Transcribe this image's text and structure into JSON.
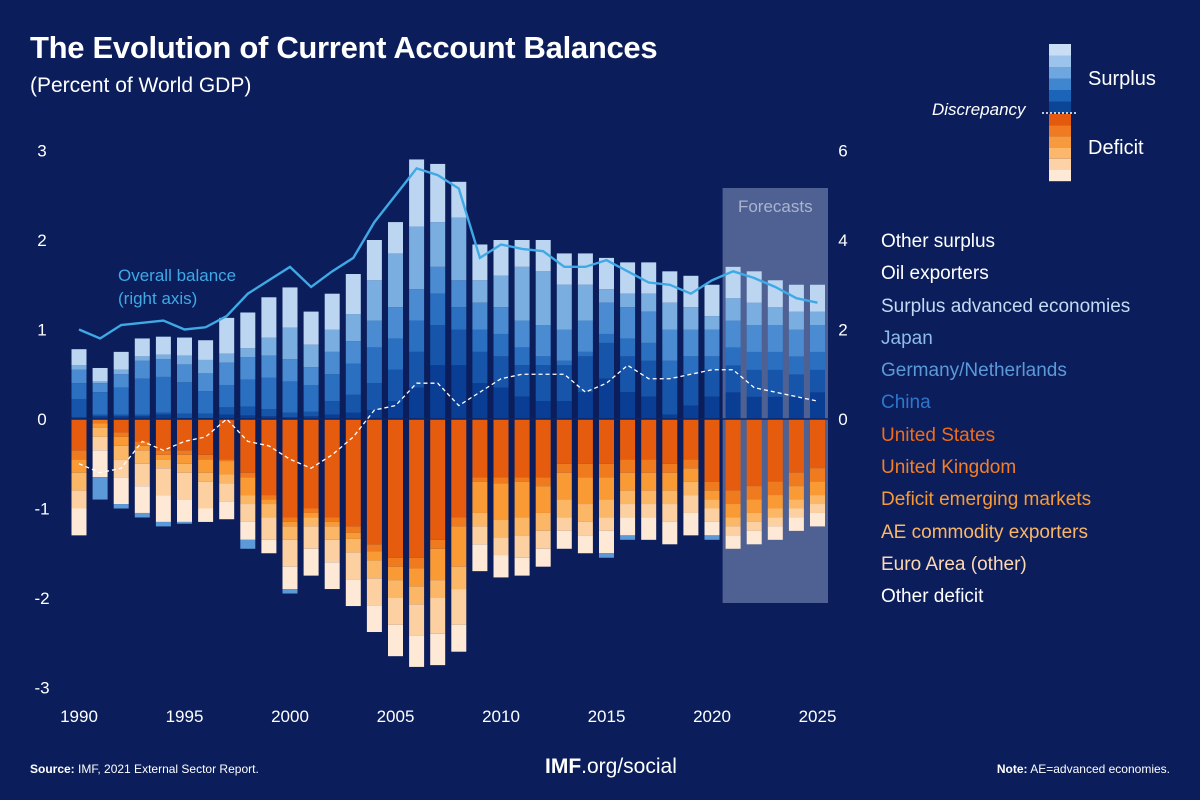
{
  "title": "The Evolution of Current Account Balances",
  "subtitle": "(Percent of World GDP)",
  "footer": {
    "source_label": "Source:",
    "source_text": "IMF, 2021 External Sector Report.",
    "brand_bold": "IMF",
    "brand_rest": ".org/social",
    "note_label": "Note:",
    "note_text": "AE=advanced economies."
  },
  "key": {
    "surplus": "Surplus",
    "deficit": "Deficit",
    "discrepancy": "Discrepancy"
  },
  "colors": {
    "background": "#0b1e5b",
    "overall_line": "#3fa9e6",
    "forecast_band": "#5a6d9c"
  },
  "chart_data": {
    "type": "bar",
    "stacked": true,
    "x": [
      1990,
      1991,
      1992,
      1993,
      1994,
      1995,
      1996,
      1997,
      1998,
      1999,
      2000,
      2001,
      2002,
      2003,
      2004,
      2005,
      2006,
      2007,
      2008,
      2009,
      2010,
      2011,
      2012,
      2013,
      2014,
      2015,
      2016,
      2017,
      2018,
      2019,
      2020,
      2021,
      2022,
      2023,
      2024,
      2025
    ],
    "x_ticks": [
      1990,
      1995,
      2000,
      2005,
      2010,
      2015,
      2020,
      2025
    ],
    "ylim": [
      -3,
      3
    ],
    "y_ticks": [
      3,
      2,
      1,
      0,
      -1,
      -2,
      -3
    ],
    "y2lim": [
      -6,
      6
    ],
    "y2_ticks": [
      6,
      4,
      2,
      0
    ],
    "forecast_label": "Forecasts",
    "forecast_range": [
      2021,
      2025
    ],
    "series": [
      {
        "name": "China",
        "group": "surplus",
        "color": "#0a3e94",
        "values": [
          0.02,
          0.03,
          0.03,
          0.03,
          0.05,
          0.01,
          0.01,
          0.05,
          0.04,
          0.03,
          0.02,
          0.03,
          0.05,
          0.07,
          0.1,
          0.2,
          0.35,
          0.6,
          0.6,
          0.4,
          0.35,
          0.25,
          0.2,
          0.2,
          0.3,
          0.45,
          0.3,
          0.25,
          0.05,
          0.15,
          0.25,
          0.3,
          0.25,
          0.25,
          0.25,
          0.3
        ]
      },
      {
        "name": "Germany/Netherlands",
        "group": "surplus",
        "color": "#1655aa",
        "values": [
          0.2,
          0.02,
          0.02,
          0.02,
          0.02,
          0.05,
          0.05,
          0.08,
          0.1,
          0.08,
          0.05,
          0.05,
          0.15,
          0.2,
          0.3,
          0.35,
          0.4,
          0.45,
          0.4,
          0.35,
          0.35,
          0.35,
          0.4,
          0.4,
          0.4,
          0.4,
          0.4,
          0.4,
          0.4,
          0.35,
          0.3,
          0.3,
          0.3,
          0.3,
          0.25,
          0.25
        ]
      },
      {
        "name": "Japan",
        "group": "surplus",
        "color": "#2a6fc0",
        "values": [
          0.18,
          0.25,
          0.3,
          0.4,
          0.4,
          0.35,
          0.25,
          0.25,
          0.3,
          0.35,
          0.35,
          0.3,
          0.3,
          0.35,
          0.4,
          0.35,
          0.35,
          0.35,
          0.25,
          0.25,
          0.25,
          0.2,
          0.1,
          0.05,
          0.05,
          0.1,
          0.2,
          0.2,
          0.2,
          0.2,
          0.15,
          0.2,
          0.2,
          0.2,
          0.2,
          0.2
        ]
      },
      {
        "name": "Surplus advanced economies",
        "group": "surplus",
        "color": "#4a8bd2",
        "values": [
          0.15,
          0.1,
          0.15,
          0.2,
          0.2,
          0.2,
          0.2,
          0.25,
          0.25,
          0.25,
          0.25,
          0.2,
          0.25,
          0.25,
          0.3,
          0.35,
          0.35,
          0.3,
          0.3,
          0.3,
          0.3,
          0.3,
          0.35,
          0.35,
          0.35,
          0.35,
          0.35,
          0.35,
          0.35,
          0.3,
          0.3,
          0.3,
          0.3,
          0.3,
          0.3,
          0.3
        ]
      },
      {
        "name": "Oil exporters",
        "group": "surplus",
        "color": "#7aaee1",
        "values": [
          0.05,
          0.02,
          0.05,
          0.05,
          0.05,
          0.1,
          0.15,
          0.1,
          0.1,
          0.2,
          0.35,
          0.25,
          0.25,
          0.3,
          0.45,
          0.6,
          0.7,
          0.5,
          0.7,
          0.25,
          0.35,
          0.6,
          0.6,
          0.5,
          0.4,
          0.15,
          0.15,
          0.2,
          0.3,
          0.25,
          0.15,
          0.25,
          0.25,
          0.2,
          0.2,
          0.15
        ]
      },
      {
        "name": "Other surplus",
        "group": "surplus",
        "color": "#bcd6f2",
        "values": [
          0.18,
          0.15,
          0.2,
          0.2,
          0.2,
          0.2,
          0.22,
          0.4,
          0.4,
          0.45,
          0.45,
          0.37,
          0.4,
          0.45,
          0.45,
          0.35,
          0.75,
          0.65,
          0.4,
          0.4,
          0.4,
          0.3,
          0.35,
          0.35,
          0.35,
          0.35,
          0.35,
          0.35,
          0.35,
          0.35,
          0.35,
          0.35,
          0.35,
          0.3,
          0.3,
          0.3
        ]
      },
      {
        "name": "United States",
        "group": "deficit",
        "color": "#e65c0e",
        "values": [
          0.35,
          0.0,
          0.15,
          0.25,
          0.35,
          0.35,
          0.4,
          0.45,
          0.6,
          0.85,
          1.1,
          1.0,
          1.1,
          1.2,
          1.4,
          1.55,
          1.55,
          1.35,
          1.1,
          0.65,
          0.65,
          0.65,
          0.65,
          0.5,
          0.5,
          0.5,
          0.45,
          0.45,
          0.5,
          0.45,
          0.7,
          0.8,
          0.75,
          0.7,
          0.6,
          0.55
        ]
      },
      {
        "name": "United Kingdom",
        "group": "deficit",
        "color": "#f07a1e",
        "values": [
          0.1,
          0.05,
          0.05,
          0.05,
          0.05,
          0.05,
          0.05,
          0.02,
          0.05,
          0.05,
          0.05,
          0.05,
          0.05,
          0.07,
          0.08,
          0.1,
          0.12,
          0.1,
          0.1,
          0.05,
          0.07,
          0.05,
          0.1,
          0.1,
          0.15,
          0.15,
          0.15,
          0.15,
          0.1,
          0.1,
          0.1,
          0.15,
          0.15,
          0.15,
          0.15,
          0.15
        ]
      },
      {
        "name": "Deficit emerging markets",
        "group": "deficit",
        "color": "#f99a35",
        "values": [
          0.15,
          0.05,
          0.1,
          0.05,
          0.05,
          0.1,
          0.15,
          0.15,
          0.2,
          0.05,
          0.05,
          0.05,
          0.05,
          0.07,
          0.1,
          0.15,
          0.2,
          0.35,
          0.45,
          0.35,
          0.4,
          0.4,
          0.3,
          0.3,
          0.3,
          0.25,
          0.2,
          0.2,
          0.2,
          0.15,
          0.1,
          0.15,
          0.15,
          0.15,
          0.15,
          0.15
        ]
      },
      {
        "name": "AE commodity exporters",
        "group": "deficit",
        "color": "#fbb666",
        "values": [
          0.2,
          0.1,
          0.15,
          0.15,
          0.1,
          0.1,
          0.1,
          0.1,
          0.1,
          0.15,
          0.15,
          0.1,
          0.15,
          0.15,
          0.2,
          0.2,
          0.2,
          0.2,
          0.25,
          0.15,
          0.2,
          0.2,
          0.2,
          0.2,
          0.2,
          0.2,
          0.15,
          0.15,
          0.15,
          0.15,
          0.1,
          0.1,
          0.1,
          0.1,
          0.1,
          0.1
        ]
      },
      {
        "name": "Euro Area (other)",
        "group": "deficit",
        "color": "#fdd0a2",
        "values": [
          0.2,
          0.15,
          0.2,
          0.25,
          0.3,
          0.3,
          0.3,
          0.2,
          0.2,
          0.25,
          0.3,
          0.25,
          0.25,
          0.3,
          0.3,
          0.3,
          0.35,
          0.4,
          0.4,
          0.2,
          0.2,
          0.25,
          0.2,
          0.15,
          0.15,
          0.15,
          0.15,
          0.15,
          0.2,
          0.2,
          0.15,
          0.1,
          0.1,
          0.1,
          0.1,
          0.1
        ]
      },
      {
        "name": "Other deficit",
        "group": "deficit",
        "color": "#fee8d6",
        "values": [
          0.3,
          0.3,
          0.3,
          0.3,
          0.3,
          0.25,
          0.15,
          0.2,
          0.2,
          0.15,
          0.25,
          0.3,
          0.3,
          0.3,
          0.3,
          0.35,
          0.35,
          0.35,
          0.3,
          0.3,
          0.25,
          0.2,
          0.2,
          0.2,
          0.2,
          0.25,
          0.2,
          0.25,
          0.25,
          0.25,
          0.15,
          0.15,
          0.15,
          0.15,
          0.15,
          0.15
        ]
      }
    ],
    "discrepancy_overflow": {
      "note": "Blue segments shown at the bottom of deficit bars in early years",
      "values": [
        0.0,
        0.25,
        0.05,
        0.05,
        0.05,
        0.02,
        0.0,
        0.0,
        0.1,
        0.0,
        0.05,
        0.0,
        0.0,
        0.0,
        0.0,
        0.0,
        0.0,
        0.0,
        0.0,
        0.0,
        0.0,
        0.0,
        0.0,
        0.0,
        0.0,
        0.05,
        0.05,
        0.0,
        0.0,
        0.0,
        0.05,
        0.0,
        0.0,
        0.0,
        0.0,
        0.0
      ]
    },
    "overall_balance": {
      "label_line1": "Overall balance",
      "label_line2": "(right axis)",
      "axis": "right",
      "values": [
        2.0,
        1.8,
        2.1,
        2.15,
        2.2,
        2.0,
        2.05,
        2.3,
        2.8,
        3.1,
        3.4,
        2.95,
        3.3,
        3.6,
        4.4,
        5.0,
        5.6,
        5.45,
        5.15,
        3.6,
        3.9,
        3.8,
        3.75,
        3.4,
        3.4,
        3.55,
        3.3,
        3.05,
        3.0,
        2.8,
        3.1,
        3.3,
        3.15,
        2.95,
        2.7,
        2.6
      ]
    },
    "discrepancy_line": {
      "values": [
        -0.5,
        -0.6,
        -0.55,
        -0.25,
        -0.35,
        -0.25,
        -0.2,
        0.0,
        -0.25,
        -0.3,
        -0.45,
        -0.55,
        -0.4,
        -0.2,
        0.1,
        0.15,
        0.4,
        0.4,
        0.15,
        0.3,
        0.45,
        0.5,
        0.5,
        0.5,
        0.3,
        0.4,
        0.6,
        0.45,
        0.45,
        0.5,
        0.55,
        0.55,
        0.35,
        0.3,
        0.25,
        0.2
      ]
    },
    "legend_order": [
      "Other surplus",
      "Oil exporters",
      "Surplus advanced economies",
      "Japan",
      "Germany/Netherlands",
      "China",
      "United States",
      "United Kingdom",
      "Deficit emerging markets",
      "AE commodity exporters",
      "Euro Area (other)",
      "Other deficit"
    ],
    "legend_colors": [
      "#ffffff",
      "#ffffff",
      "#c3daf2",
      "#8ebbe8",
      "#5c99d8",
      "#2d77cc",
      "#f06c1a",
      "#f57f25",
      "#f99a35",
      "#fbb666",
      "#fdd8b3",
      "#ffffff"
    ]
  }
}
